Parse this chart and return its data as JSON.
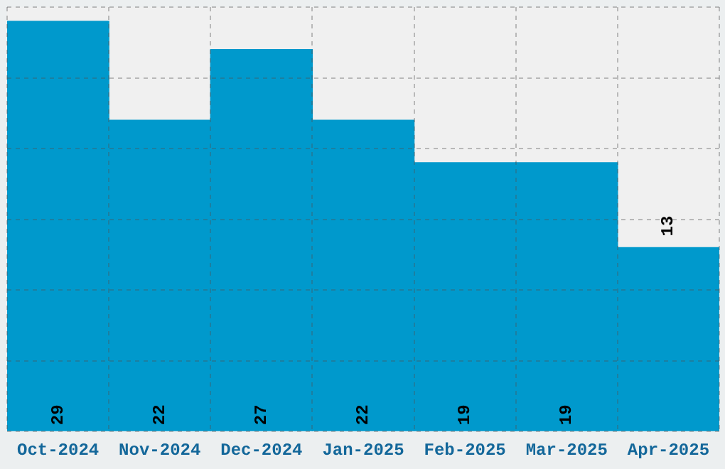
{
  "chart_data": {
    "type": "bar",
    "categories": [
      "Oct-2024",
      "Nov-2024",
      "Dec-2024",
      "Jan-2025",
      "Feb-2025",
      "Mar-2025",
      "Apr-2025"
    ],
    "values": [
      29,
      22,
      27,
      22,
      19,
      19,
      13
    ],
    "color": "#0099cc",
    "grid": true,
    "data_labels": true,
    "tick_labels": "x"
  }
}
